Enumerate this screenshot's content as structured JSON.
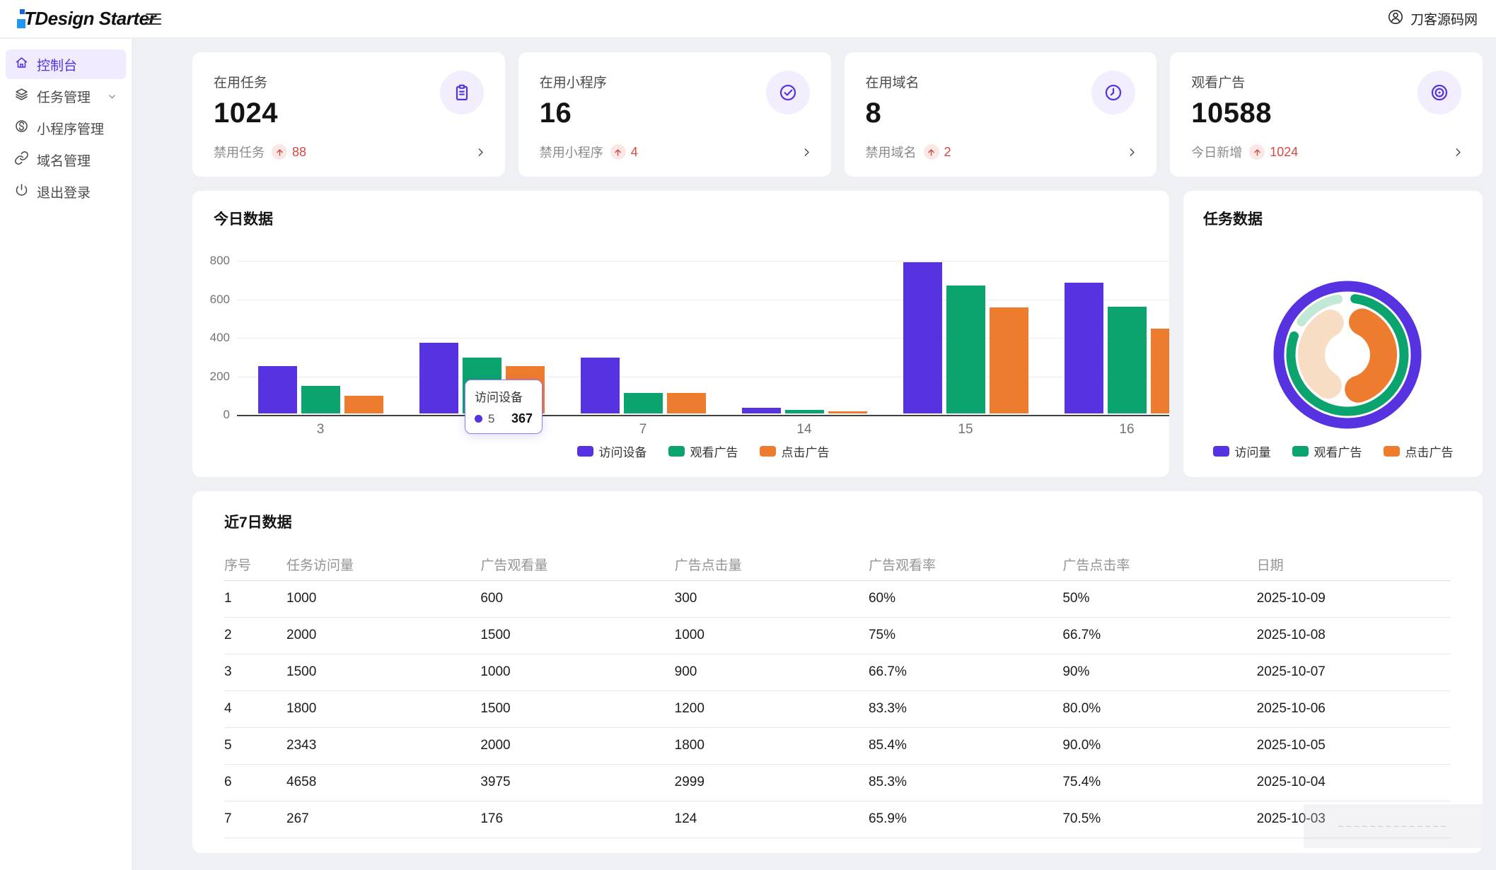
{
  "header": {
    "logo_text": "TDesign Starter",
    "user_name": "刀客源码网"
  },
  "sidebar": {
    "items": [
      {
        "label": "控制台",
        "icon": "home-icon",
        "active": true,
        "has_children": false
      },
      {
        "label": "任务管理",
        "icon": "layers-icon",
        "active": false,
        "has_children": true
      },
      {
        "label": "小程序管理",
        "icon": "miniprogram-icon",
        "active": false,
        "has_children": false
      },
      {
        "label": "域名管理",
        "icon": "link-icon",
        "active": false,
        "has_children": false
      },
      {
        "label": "退出登录",
        "icon": "power-icon",
        "active": false,
        "has_children": false
      }
    ]
  },
  "stat_cards": [
    {
      "label": "在用任务",
      "value": "1024",
      "sub_label": "禁用任务",
      "sub_value": "88",
      "icon": "clipboard-icon"
    },
    {
      "label": "在用小程序",
      "value": "16",
      "sub_label": "禁用小程序",
      "sub_value": "4",
      "icon": "check-circle-icon"
    },
    {
      "label": "在用域名",
      "value": "8",
      "sub_label": "禁用域名",
      "sub_value": "2",
      "icon": "clock-icon"
    },
    {
      "label": "观看广告",
      "value": "10588",
      "sub_label": "今日新增",
      "sub_value": "1024",
      "icon": "eye-icon"
    }
  ],
  "colors": {
    "brand_purple": "#5632e0",
    "green": "#0ba36e",
    "orange": "#ed7c2f",
    "mint": "#c2e8d6",
    "peach": "#f7ddc3",
    "red": "#d54941"
  },
  "chart_data": [
    {
      "type": "bar",
      "title": "今日数据",
      "categories": [
        "3",
        "5",
        "7",
        "14",
        "15",
        "16"
      ],
      "series": [
        {
          "name": "访问设备",
          "color_key": "brand_purple",
          "values": [
            245,
            367,
            290,
            30,
            785,
            680
          ]
        },
        {
          "name": "观看广告",
          "color_key": "green",
          "values": [
            145,
            290,
            105,
            18,
            665,
            555
          ]
        },
        {
          "name": "点击广告",
          "color_key": "orange",
          "values": [
            90,
            245,
            105,
            10,
            550,
            440
          ]
        }
      ],
      "ylim": [
        0,
        800
      ],
      "yticks": [
        0,
        200,
        400,
        600,
        800
      ],
      "grid": true,
      "legend_position": "bottom"
    },
    {
      "type": "donut",
      "title": "任务数据",
      "rings": [
        {
          "name": "访问量",
          "radius": 97,
          "width": 15,
          "segments": [
            {
              "color_key": "brand_purple",
              "start": 0,
              "end": 360
            }
          ]
        },
        {
          "name": "观看广告",
          "radius": 80,
          "width": 13,
          "segments": [
            {
              "color_key": "green",
              "start": 3,
              "end": 294
            },
            {
              "color_key": "mint",
              "start": 301,
              "end": 355
            }
          ]
        },
        {
          "name": "点击广告",
          "radius": 51,
          "width": 38,
          "segments": [
            {
              "color_key": "orange",
              "start": 3,
              "end": 184
            },
            {
              "color_key": "peach",
              "start": 191,
              "end": 353
            }
          ]
        }
      ],
      "legend": [
        {
          "label": "访问量",
          "color_key": "brand_purple"
        },
        {
          "label": "观看广告",
          "color_key": "green"
        },
        {
          "label": "点击广告",
          "color_key": "orange"
        }
      ],
      "legend_position": "bottom"
    }
  ],
  "tooltip": {
    "title": "访问设备",
    "series_label": "5",
    "value": "367"
  },
  "table": {
    "title": "近7日数据",
    "columns": [
      "序号",
      "任务访问量",
      "广告观看量",
      "广告点击量",
      "广告观看率",
      "广告点击率",
      "日期"
    ],
    "rows": [
      [
        "1",
        "1000",
        "600",
        "300",
        "60%",
        "50%",
        "2025-10-09"
      ],
      [
        "2",
        "2000",
        "1500",
        "1000",
        "75%",
        "66.7%",
        "2025-10-08"
      ],
      [
        "3",
        "1500",
        "1000",
        "900",
        "66.7%",
        "90%",
        "2025-10-07"
      ],
      [
        "4",
        "1800",
        "1500",
        "1200",
        "83.3%",
        "80.0%",
        "2025-10-06"
      ],
      [
        "5",
        "2343",
        "2000",
        "1800",
        "85.4%",
        "90.0%",
        "2025-10-05"
      ],
      [
        "6",
        "4658",
        "3975",
        "2999",
        "85.3%",
        "75.4%",
        "2025-10-04"
      ],
      [
        "7",
        "267",
        "176",
        "124",
        "65.9%",
        "70.5%",
        "2025-10-03"
      ]
    ]
  },
  "watermark": {
    "scribble": "~~~~~~~~~~~~~~"
  }
}
